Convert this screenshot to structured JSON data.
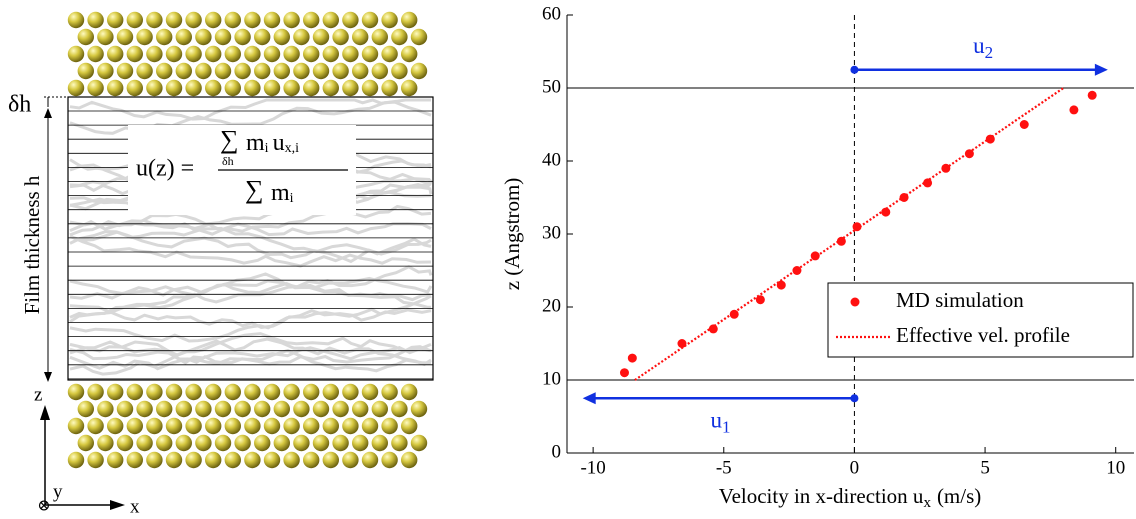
{
  "diagram": {
    "delta_h": "δh",
    "film_thickness": "Film thickness h",
    "formula": {
      "lhs": "u(z) =",
      "num_sum": "∑",
      "num_m": "m",
      "num_m_sub": "i",
      "num_u": "u",
      "num_u_sub": "x,i",
      "under": "δh",
      "den_sum": "∑",
      "den_m": "m",
      "den_m_sub": "i"
    },
    "axes": {
      "z": "z",
      "y": "y",
      "x": "x",
      "out": "⊗"
    }
  },
  "chart_data": {
    "type": "scatter",
    "xlabel": {
      "text": "Velocity in x-direction u",
      "sub": "x",
      "unit": "(m/s)"
    },
    "ylabel": "z (Angstrom)",
    "xlim": [
      -11,
      10.7
    ],
    "ylim": [
      0,
      60
    ],
    "xticks": [
      -10,
      -5,
      0,
      5,
      10
    ],
    "yticks": [
      0,
      10,
      20,
      30,
      40,
      50,
      60
    ],
    "grid": false,
    "legend": "lower right",
    "series": [
      {
        "name": "MD simulation",
        "type": "scatter",
        "color": "#ff1010",
        "x": [
          -8.8,
          -8.5,
          -6.6,
          -5.4,
          -4.6,
          -3.6,
          -2.8,
          -2.2,
          -1.5,
          -0.5,
          0.1,
          1.2,
          1.9,
          2.8,
          3.5,
          4.4,
          5.2,
          6.5,
          8.4,
          9.1
        ],
        "values": [
          11,
          13,
          15,
          17,
          19,
          21,
          23,
          25,
          27,
          29,
          31,
          33,
          35,
          37,
          39,
          41,
          43,
          45,
          47,
          49
        ]
      },
      {
        "name": "Effective vel. profile",
        "type": "line",
        "style": "dotted",
        "color": "#ff1010",
        "x": [
          -8.4,
          8
        ],
        "values": [
          10,
          50
        ]
      }
    ],
    "hlines": [
      10,
      50
    ],
    "vline": 0,
    "arrows": [
      {
        "label": "u",
        "sub": "2",
        "x": [
          0,
          9.7
        ],
        "y": 52.5,
        "color": "#1030e0"
      },
      {
        "label": "u",
        "sub": "1",
        "x": [
          0,
          -10.4
        ],
        "y": 7.5,
        "color": "#1030e0"
      }
    ]
  }
}
